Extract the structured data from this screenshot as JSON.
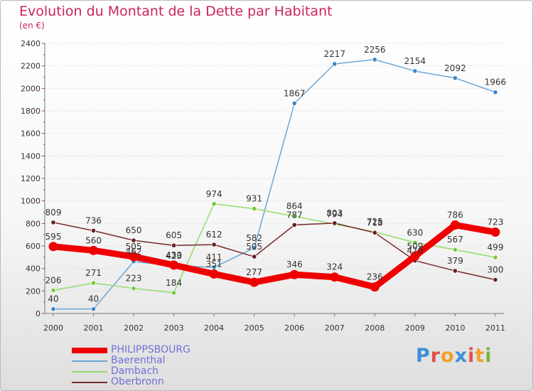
{
  "header": {
    "title": "Evolution du Montant de la Dette par Habitant",
    "unit": "(en €)"
  },
  "brand": {
    "letters": [
      "P",
      "r",
      "o",
      "x",
      "i",
      "t",
      "i"
    ],
    "colors": [
      "#3d8fd8",
      "#e0524c",
      "#f0a12a",
      "#3d8fd8",
      "#e0524c",
      "#f0a12a",
      "#79b83a"
    ]
  },
  "chart_data": {
    "type": "line",
    "title": "Evolution du Montant de la Dette par Habitant",
    "ylabel": "(en €)",
    "xlabel": "",
    "x": [
      "2000",
      "2001",
      "2002",
      "2003",
      "2004",
      "2005",
      "2006",
      "2007",
      "2008",
      "2009",
      "2010",
      "2011"
    ],
    "ylim": [
      0,
      2400
    ],
    "yticks": [
      0,
      200,
      400,
      600,
      800,
      1000,
      1200,
      1400,
      1600,
      1800,
      2000,
      2200,
      2400
    ],
    "grid": "horizontal",
    "legend_position": "bottom-left",
    "series": [
      {
        "name": "Baerenthal",
        "color": "#6aa6d8",
        "marker": "#3d86c6",
        "values": [
          40,
          40,
          462,
          423,
          411,
          582,
          1867,
          2217,
          2256,
          2154,
          2092,
          1966
        ]
      },
      {
        "name": "Dambach",
        "color": "#93dc6a",
        "marker": "#71cc3c",
        "values": [
          206,
          271,
          223,
          184,
          974,
          931,
          864,
          794,
          725,
          630,
          567,
          499
        ]
      },
      {
        "name": "Oberbronn",
        "color": "#7a2a2a",
        "marker": "#6a1d1d",
        "values": [
          809,
          736,
          650,
          605,
          612,
          505,
          787,
          803,
          718,
          470,
          379,
          300
        ]
      },
      {
        "name": "PHILIPPSBOURG",
        "color": "#ee0000",
        "marker": "#ee0000",
        "emphasis": true,
        "values": [
          595,
          560,
          505,
          430,
          351,
          277,
          346,
          324,
          236,
          509,
          786,
          723
        ]
      }
    ],
    "data_labels": [
      {
        "series": "Baerenthal",
        "values": [
          "40",
          "40",
          "462",
          "423",
          "411",
          "582",
          "1867",
          "2217",
          "2256",
          "2154",
          "2092",
          "1966"
        ]
      },
      {
        "series": "Dambach",
        "values": [
          "206",
          "271",
          "223",
          "184",
          "974",
          "931",
          "864",
          "794",
          "725",
          "630",
          "567",
          "499"
        ]
      },
      {
        "series": "Oberbronn",
        "values": [
          "809",
          "736",
          "650",
          "605",
          "612",
          "505",
          "787",
          "803",
          "718",
          "470",
          "379",
          "300"
        ]
      },
      {
        "series": "PHILIPPSBOURG",
        "values": [
          "595",
          "560",
          "505",
          "430",
          "351",
          "277",
          "346",
          "324",
          "236",
          "509",
          "786",
          "723"
        ]
      }
    ],
    "legend_order": [
      "PHILIPPSBOURG",
      "Baerenthal",
      "Dambach",
      "Oberbronn"
    ]
  }
}
